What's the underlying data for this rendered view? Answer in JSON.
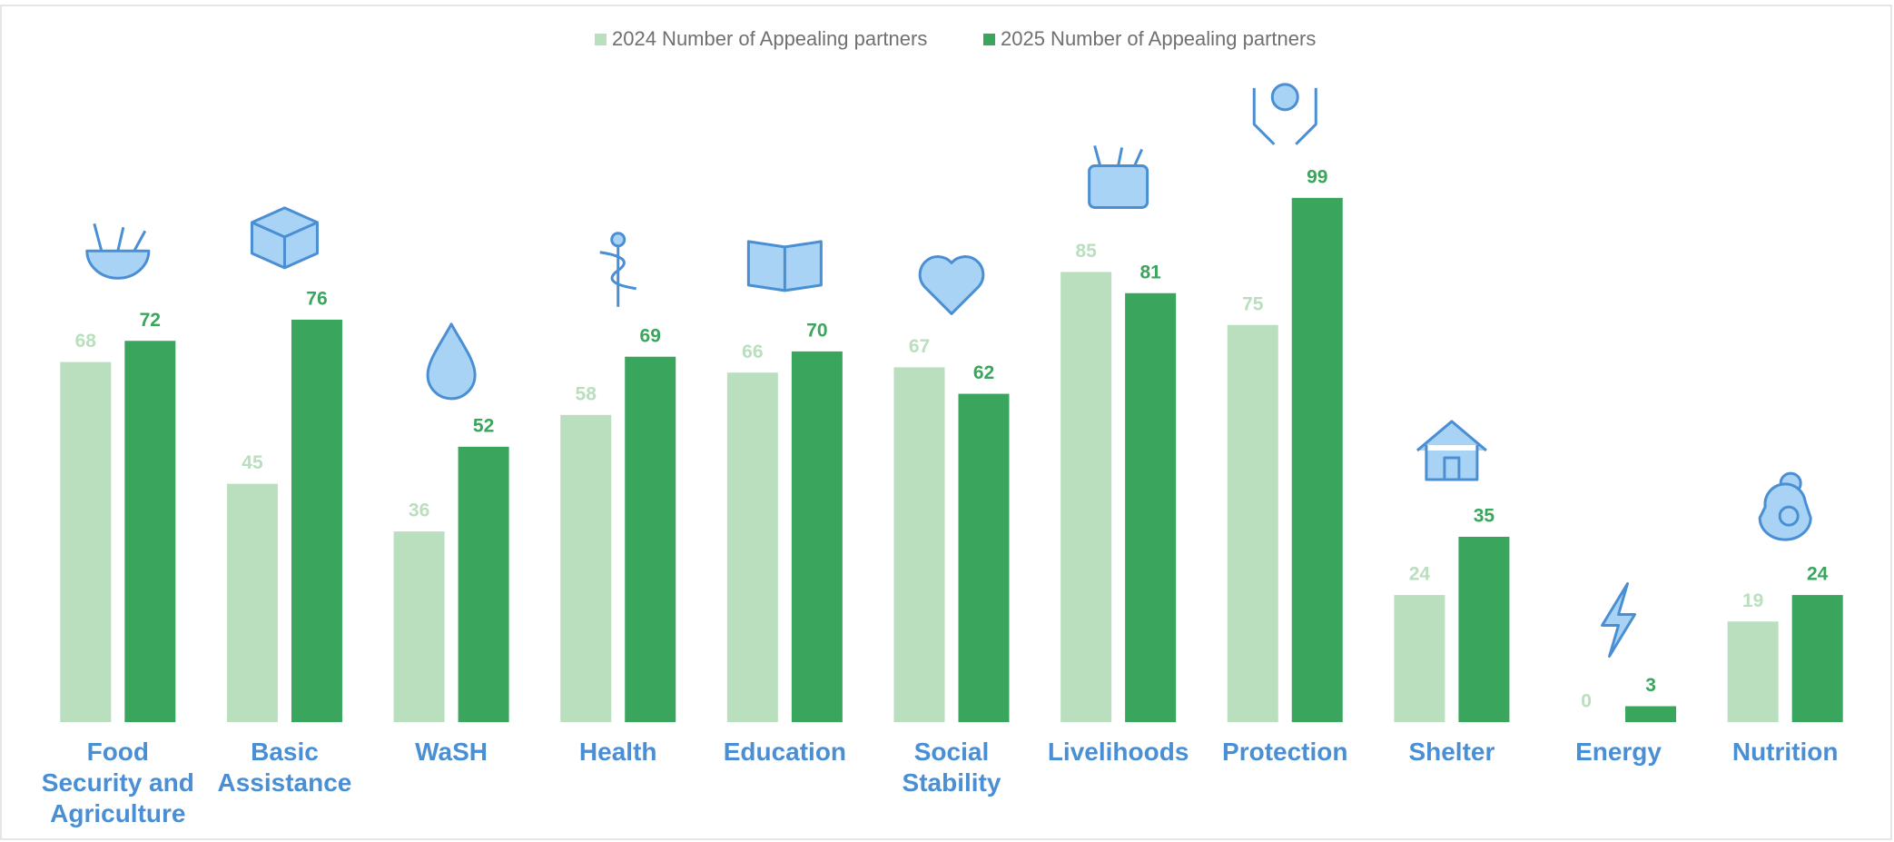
{
  "chart_data": {
    "type": "bar",
    "categories": [
      "Food Security and Agriculture",
      "Basic Assistance",
      "WaSH",
      "Health",
      "Education",
      "Social Stability",
      "Livelihoods",
      "Protection",
      "Shelter",
      "Energy",
      "Nutrition"
    ],
    "series": [
      {
        "name": "2024 Number of Appealing partners",
        "color": "#b9dfbf",
        "values": [
          68,
          45,
          36,
          58,
          66,
          67,
          85,
          75,
          24,
          0,
          19
        ]
      },
      {
        "name": "2025 Number of Appealing partners",
        "color": "#3aa55d",
        "values": [
          72,
          76,
          52,
          69,
          70,
          62,
          81,
          99,
          35,
          3,
          24
        ]
      }
    ],
    "ylim": [
      0,
      100
    ],
    "legend": "top"
  }
}
